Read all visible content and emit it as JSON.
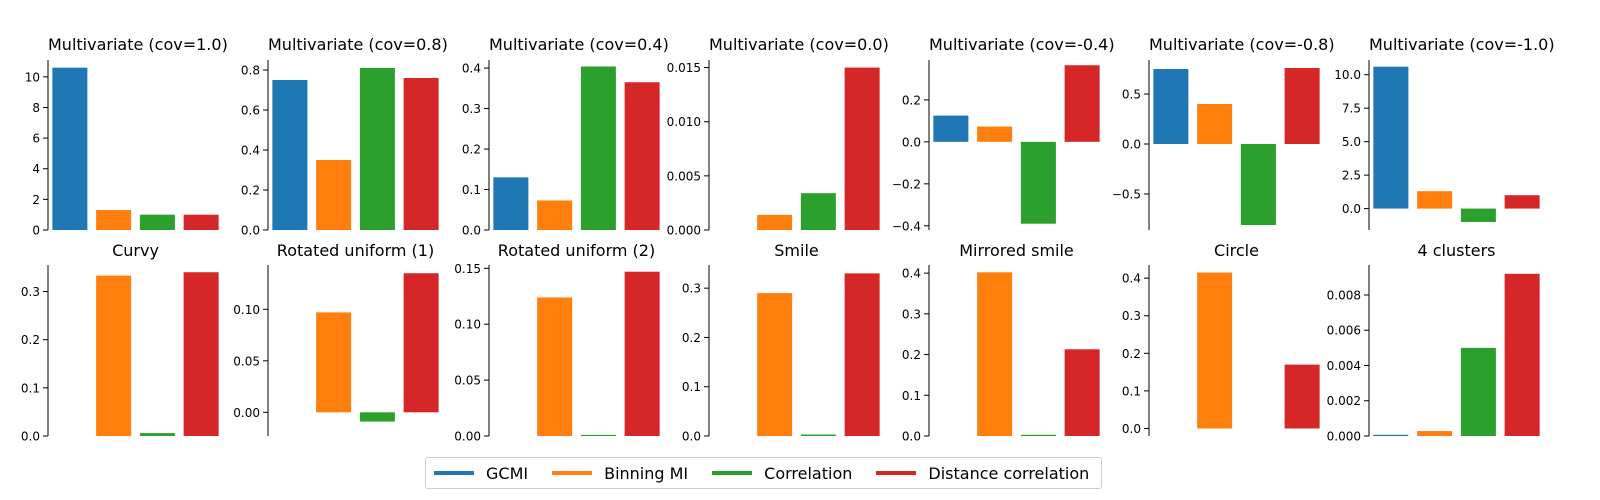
{
  "colors": {
    "GCMI": "#1f77b4",
    "Binning MI": "#ff7f0e",
    "Correlation": "#2ca02c",
    "Distance correlation": "#d62728"
  },
  "legend": {
    "items": [
      {
        "label": "GCMI",
        "color": "#1f77b4"
      },
      {
        "label": "Binning MI",
        "color": "#ff7f0e"
      },
      {
        "label": "Correlation",
        "color": "#2ca02c"
      },
      {
        "label": "Distance correlation",
        "color": "#d62728"
      }
    ]
  },
  "chart_data": [
    {
      "type": "bar",
      "title": "Multivariate (cov=1.0)",
      "categories": [
        "GCMI",
        "Binning MI",
        "Correlation",
        "Distance correlation"
      ],
      "values": [
        10.6,
        1.3,
        1.0,
        1.0
      ],
      "ylim": [
        0,
        11.1
      ],
      "yticks": [
        0,
        2,
        4,
        6,
        8,
        10
      ],
      "ytick_labels": [
        "0",
        "2",
        "4",
        "6",
        "8",
        "10"
      ],
      "legend_position": "bottom-center"
    },
    {
      "type": "bar",
      "title": "Multivariate (cov=0.8)",
      "categories": [
        "GCMI",
        "Binning MI",
        "Correlation",
        "Distance correlation"
      ],
      "values": [
        0.75,
        0.35,
        0.81,
        0.76
      ],
      "ylim": [
        0,
        0.85
      ],
      "yticks": [
        0,
        0.2,
        0.4,
        0.6,
        0.8
      ],
      "ytick_labels": [
        "0.0",
        "0.2",
        "0.4",
        "0.6",
        "0.8"
      ]
    },
    {
      "type": "bar",
      "title": "Multivariate (cov=0.4)",
      "categories": [
        "GCMI",
        "Binning MI",
        "Correlation",
        "Distance correlation"
      ],
      "values": [
        0.13,
        0.073,
        0.404,
        0.365
      ],
      "ylim": [
        0,
        0.42
      ],
      "yticks": [
        0,
        0.1,
        0.2,
        0.3,
        0.4
      ],
      "ytick_labels": [
        "0.0",
        "0.1",
        "0.2",
        "0.3",
        "0.4"
      ]
    },
    {
      "type": "bar",
      "title": "Multivariate (cov=0.0)",
      "categories": [
        "GCMI",
        "Binning MI",
        "Correlation",
        "Distance correlation"
      ],
      "values": [
        0.0,
        0.0014,
        0.0034,
        0.015
      ],
      "ylim": [
        0,
        0.0157
      ],
      "yticks": [
        0,
        0.005,
        0.01,
        0.015
      ],
      "ytick_labels": [
        "0.000",
        "0.005",
        "0.010",
        "0.015"
      ]
    },
    {
      "type": "bar",
      "title": "Multivariate (cov=-0.4)",
      "categories": [
        "GCMI",
        "Binning MI",
        "Correlation",
        "Distance correlation"
      ],
      "values": [
        0.125,
        0.073,
        -0.39,
        0.365
      ],
      "ylim": [
        -0.42,
        0.39
      ],
      "yticks": [
        -0.4,
        -0.2,
        0,
        0.2
      ],
      "ytick_labels": [
        "−0.4",
        "−0.2",
        "0.0",
        "0.2"
      ]
    },
    {
      "type": "bar",
      "title": "Multivariate (cov=-0.8)",
      "categories": [
        "GCMI",
        "Binning MI",
        "Correlation",
        "Distance correlation"
      ],
      "values": [
        0.75,
        0.4,
        -0.81,
        0.76
      ],
      "ylim": [
        -0.86,
        0.84
      ],
      "yticks": [
        -0.5,
        0,
        0.5
      ],
      "ytick_labels": [
        "−0.5",
        "0.0",
        "0.5"
      ]
    },
    {
      "type": "bar",
      "title": "Multivariate (cov=-1.0)",
      "categories": [
        "GCMI",
        "Binning MI",
        "Correlation",
        "Distance correlation"
      ],
      "values": [
        10.6,
        1.3,
        -1.0,
        1.0
      ],
      "ylim": [
        -1.6,
        11.1
      ],
      "yticks": [
        0,
        2.5,
        5,
        7.5,
        10
      ],
      "ytick_labels": [
        "0.0",
        "2.5",
        "5.0",
        "7.5",
        "10.0"
      ]
    },
    {
      "type": "bar",
      "title": "Curvy",
      "categories": [
        "GCMI",
        "Binning MI",
        "Correlation",
        "Distance correlation"
      ],
      "values": [
        0.0,
        0.333,
        0.006,
        0.34
      ],
      "ylim": [
        0,
        0.355
      ],
      "yticks": [
        0,
        0.1,
        0.2,
        0.3
      ],
      "ytick_labels": [
        "0.0",
        "0.1",
        "0.2",
        "0.3"
      ]
    },
    {
      "type": "bar",
      "title": "Rotated uniform (1)",
      "categories": [
        "GCMI",
        "Binning MI",
        "Correlation",
        "Distance correlation"
      ],
      "values": [
        0.0,
        0.097,
        -0.009,
        0.135
      ],
      "ylim": [
        -0.023,
        0.143
      ],
      "yticks": [
        0,
        0.05,
        0.1
      ],
      "ytick_labels": [
        "0.00",
        "0.05",
        "0.10"
      ]
    },
    {
      "type": "bar",
      "title": "Rotated uniform (2)",
      "categories": [
        "GCMI",
        "Binning MI",
        "Correlation",
        "Distance correlation"
      ],
      "values": [
        0.0,
        0.124,
        0.001,
        0.147
      ],
      "ylim": [
        0,
        0.153
      ],
      "yticks": [
        0,
        0.05,
        0.1,
        0.15
      ],
      "ytick_labels": [
        "0.00",
        "0.05",
        "0.10",
        "0.15"
      ]
    },
    {
      "type": "bar",
      "title": "Smile",
      "categories": [
        "GCMI",
        "Binning MI",
        "Correlation",
        "Distance correlation"
      ],
      "values": [
        0.0,
        0.29,
        0.003,
        0.33
      ],
      "ylim": [
        0,
        0.347
      ],
      "yticks": [
        0,
        0.1,
        0.2,
        0.3
      ],
      "ytick_labels": [
        "0.0",
        "0.1",
        "0.2",
        "0.3"
      ]
    },
    {
      "type": "bar",
      "title": "Mirrored smile",
      "categories": [
        "GCMI",
        "Binning MI",
        "Correlation",
        "Distance correlation"
      ],
      "values": [
        0.0,
        0.402,
        0.002,
        0.213
      ],
      "ylim": [
        0,
        0.42
      ],
      "yticks": [
        0,
        0.1,
        0.2,
        0.3,
        0.4
      ],
      "ytick_labels": [
        "0.0",
        "0.1",
        "0.2",
        "0.3",
        "0.4"
      ]
    },
    {
      "type": "bar",
      "title": "Circle",
      "categories": [
        "GCMI",
        "Binning MI",
        "Correlation",
        "Distance correlation"
      ],
      "values": [
        0.0,
        0.415,
        0.0,
        0.17
      ],
      "ylim": [
        -0.02,
        0.435
      ],
      "yticks": [
        0,
        0.1,
        0.2,
        0.3,
        0.4
      ],
      "ytick_labels": [
        "0.0",
        "0.1",
        "0.2",
        "0.3",
        "0.4"
      ]
    },
    {
      "type": "bar",
      "title": "4 clusters",
      "categories": [
        "GCMI",
        "Binning MI",
        "Correlation",
        "Distance correlation"
      ],
      "values": [
        7e-05,
        0.00028,
        0.005,
        0.0092
      ],
      "ylim": [
        0,
        0.0097
      ],
      "yticks": [
        0,
        0.002,
        0.004,
        0.006,
        0.008
      ],
      "ytick_labels": [
        "0.000",
        "0.002",
        "0.004",
        "0.006",
        "0.008"
      ]
    }
  ]
}
